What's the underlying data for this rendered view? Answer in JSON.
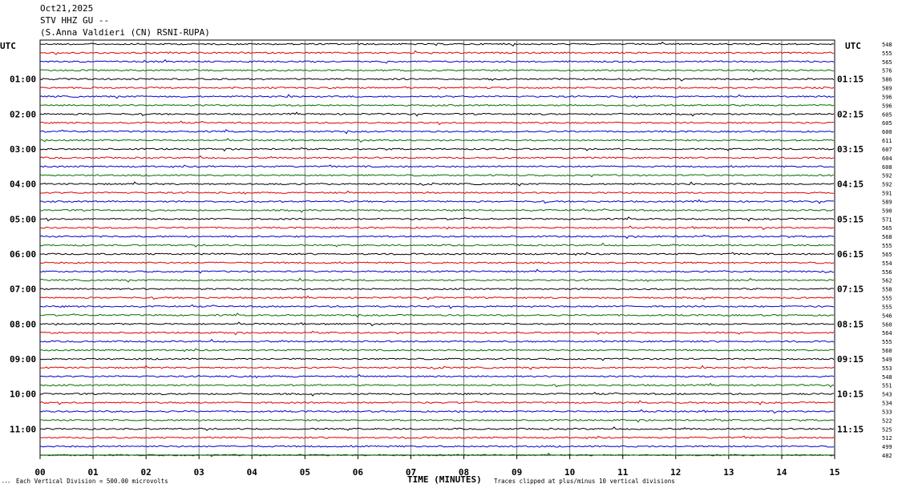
{
  "header": {
    "date": "Oct21,2025",
    "station": "STV HHZ GU --",
    "location": "(S.Anna Valdieri (CN) RSNI-RUPA)"
  },
  "left_axis_label": "UTC",
  "right_axis_label": "UTC",
  "footer": {
    "scale_note": "Each Vertical Division =  500.00 microvolts",
    "x_title": "TIME (MINUTES)",
    "clip_note": "Traces clipped at plus/minus 10 vertical divisions",
    "corner_mark": "’’’"
  },
  "chart_data": {
    "type": "line",
    "title": "",
    "xlabel": "TIME (MINUTES)",
    "x_range": [
      0,
      15
    ],
    "x_ticks": [
      "00",
      "01",
      "02",
      "03",
      "04",
      "05",
      "06",
      "07",
      "08",
      "09",
      "10",
      "11",
      "12",
      "13",
      "14",
      "15"
    ],
    "left_hour_labels": [
      "01:00",
      "02:00",
      "03:00",
      "04:00",
      "05:00",
      "06:00",
      "07:00",
      "08:00",
      "09:00",
      "10:00",
      "11:00"
    ],
    "right_hour_labels": [
      "01:15",
      "02:15",
      "03:15",
      "04:15",
      "05:15",
      "06:15",
      "07:15",
      "08:15",
      "09:15",
      "10:15",
      "11:15"
    ],
    "trace_color_cycle": [
      "#000000",
      "#e00000",
      "#0000d0",
      "#007000"
    ],
    "right_values": [
      548,
      555,
      565,
      576,
      586,
      589,
      596,
      596,
      605,
      605,
      600,
      611,
      607,
      604,
      608,
      592,
      592,
      591,
      589,
      590,
      571,
      565,
      568,
      555,
      565,
      554,
      556,
      562,
      558,
      555,
      555,
      546,
      560,
      564,
      555,
      560,
      549,
      553,
      548,
      551,
      543,
      534,
      533,
      522,
      525,
      512,
      499,
      482
    ],
    "grid": "vertical-minutes"
  }
}
